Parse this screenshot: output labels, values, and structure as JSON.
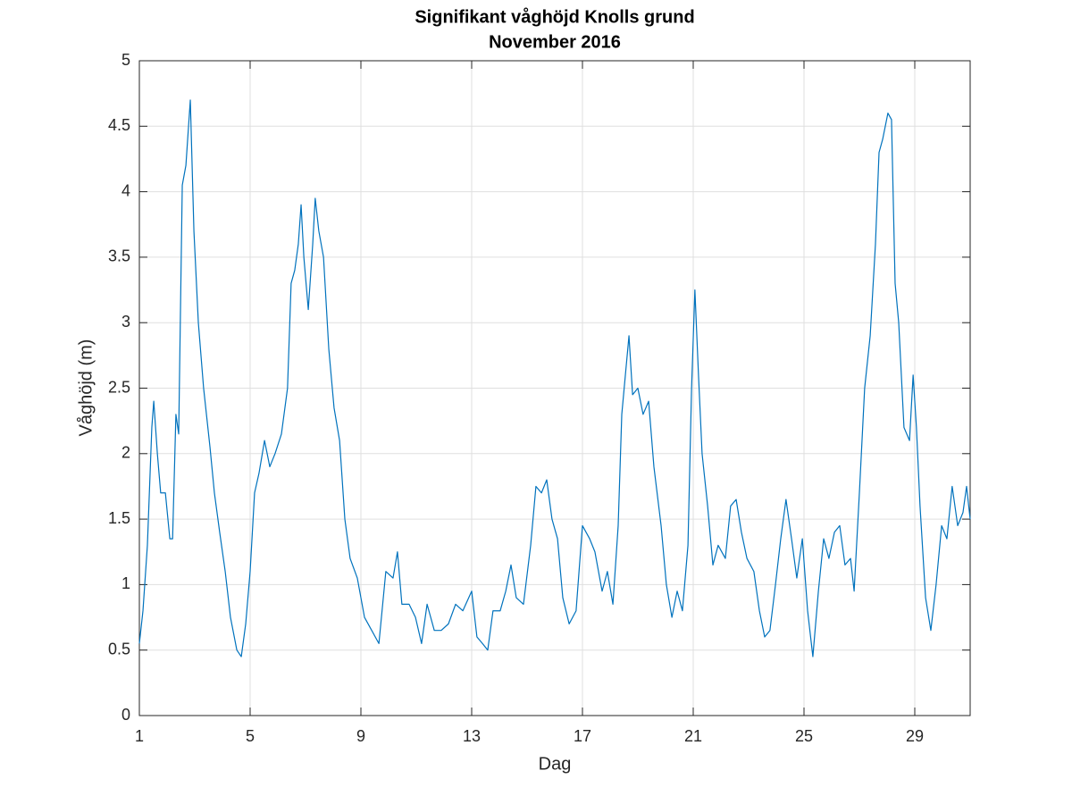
{
  "chart_data": {
    "type": "line",
    "title": "Signifikant våghöjd Knolls grund",
    "subtitle": "November 2016",
    "x_label": "Dag",
    "y_label": "Våghöjd (m)",
    "xlim": [
      1,
      31
    ],
    "xticks": [
      1,
      5,
      9,
      13,
      17,
      21,
      25,
      29
    ],
    "ylim": [
      0,
      5
    ],
    "yticks": [
      0,
      0.5,
      1,
      1.5,
      2,
      2.5,
      3,
      3.5,
      4,
      4.5,
      5
    ],
    "grid": true,
    "x": [
      1.0,
      1.13,
      1.29,
      1.45,
      1.52,
      1.65,
      1.77,
      1.94,
      2.1,
      2.2,
      2.32,
      2.42,
      2.55,
      2.68,
      2.84,
      2.97,
      3.13,
      3.32,
      3.55,
      3.71,
      3.9,
      4.1,
      4.29,
      4.52,
      4.68,
      4.84,
      5.0,
      5.16,
      5.32,
      5.52,
      5.71,
      5.9,
      6.13,
      6.35,
      6.48,
      6.61,
      6.74,
      6.84,
      6.94,
      7.1,
      7.26,
      7.35,
      7.48,
      7.65,
      7.84,
      8.03,
      8.23,
      8.42,
      8.61,
      8.87,
      9.13,
      9.39,
      9.65,
      9.9,
      10.16,
      10.32,
      10.48,
      10.74,
      10.97,
      11.19,
      11.39,
      11.65,
      11.9,
      12.16,
      12.42,
      12.68,
      13.0,
      13.19,
      13.39,
      13.58,
      13.77,
      14.03,
      14.23,
      14.42,
      14.61,
      14.87,
      15.13,
      15.32,
      15.52,
      15.71,
      15.9,
      16.1,
      16.29,
      16.52,
      16.77,
      17.0,
      17.26,
      17.45,
      17.71,
      17.9,
      18.1,
      18.29,
      18.42,
      18.55,
      18.68,
      18.81,
      19.0,
      19.19,
      19.39,
      19.58,
      19.84,
      20.03,
      20.23,
      20.42,
      20.61,
      20.81,
      20.94,
      21.06,
      21.19,
      21.32,
      21.52,
      21.71,
      21.9,
      22.16,
      22.35,
      22.55,
      22.74,
      22.94,
      23.19,
      23.39,
      23.58,
      23.77,
      23.97,
      24.16,
      24.35,
      24.55,
      24.74,
      24.94,
      25.13,
      25.32,
      25.52,
      25.71,
      25.9,
      26.1,
      26.29,
      26.48,
      26.68,
      26.81,
      27.0,
      27.19,
      27.39,
      27.58,
      27.71,
      27.84,
      28.03,
      28.16,
      28.29,
      28.42,
      28.61,
      28.81,
      28.94,
      29.06,
      29.19,
      29.39,
      29.58,
      29.77,
      29.97,
      30.16,
      30.35,
      30.55,
      30.74,
      30.87,
      31.0
    ],
    "series": [
      {
        "color": "#0072bd",
        "values": [
          0.55,
          0.8,
          1.3,
          2.2,
          2.4,
          2.0,
          1.7,
          1.7,
          1.35,
          1.35,
          2.3,
          2.15,
          4.05,
          4.2,
          4.7,
          3.7,
          3.0,
          2.5,
          2.05,
          1.7,
          1.4,
          1.1,
          0.75,
          0.5,
          0.45,
          0.7,
          1.1,
          1.7,
          1.85,
          2.1,
          1.9,
          2.0,
          2.15,
          2.5,
          3.3,
          3.4,
          3.6,
          3.9,
          3.5,
          3.1,
          3.6,
          3.95,
          3.7,
          3.5,
          2.8,
          2.35,
          2.1,
          1.5,
          1.2,
          1.05,
          0.75,
          0.65,
          0.55,
          1.1,
          1.05,
          1.25,
          0.85,
          0.85,
          0.75,
          0.55,
          0.85,
          0.65,
          0.65,
          0.7,
          0.85,
          0.8,
          0.95,
          0.6,
          0.55,
          0.5,
          0.8,
          0.8,
          0.95,
          1.15,
          0.9,
          0.85,
          1.3,
          1.75,
          1.7,
          1.8,
          1.5,
          1.35,
          0.9,
          0.7,
          0.8,
          1.45,
          1.35,
          1.25,
          0.95,
          1.1,
          0.85,
          1.45,
          2.3,
          2.6,
          2.9,
          2.45,
          2.5,
          2.3,
          2.4,
          1.9,
          1.45,
          1.0,
          0.75,
          0.95,
          0.8,
          1.3,
          2.5,
          3.25,
          2.6,
          2.0,
          1.6,
          1.15,
          1.3,
          1.2,
          1.6,
          1.65,
          1.4,
          1.2,
          1.1,
          0.8,
          0.6,
          0.65,
          1.0,
          1.35,
          1.65,
          1.35,
          1.05,
          1.35,
          0.8,
          0.45,
          0.95,
          1.35,
          1.2,
          1.4,
          1.45,
          1.15,
          1.2,
          0.95,
          1.7,
          2.5,
          2.9,
          3.6,
          4.3,
          4.4,
          4.6,
          4.55,
          3.3,
          3.0,
          2.2,
          2.1,
          2.6,
          2.2,
          1.6,
          0.9,
          0.65,
          1.0,
          1.45,
          1.35,
          1.75,
          1.45,
          1.55,
          1.75,
          1.5
        ]
      }
    ]
  }
}
